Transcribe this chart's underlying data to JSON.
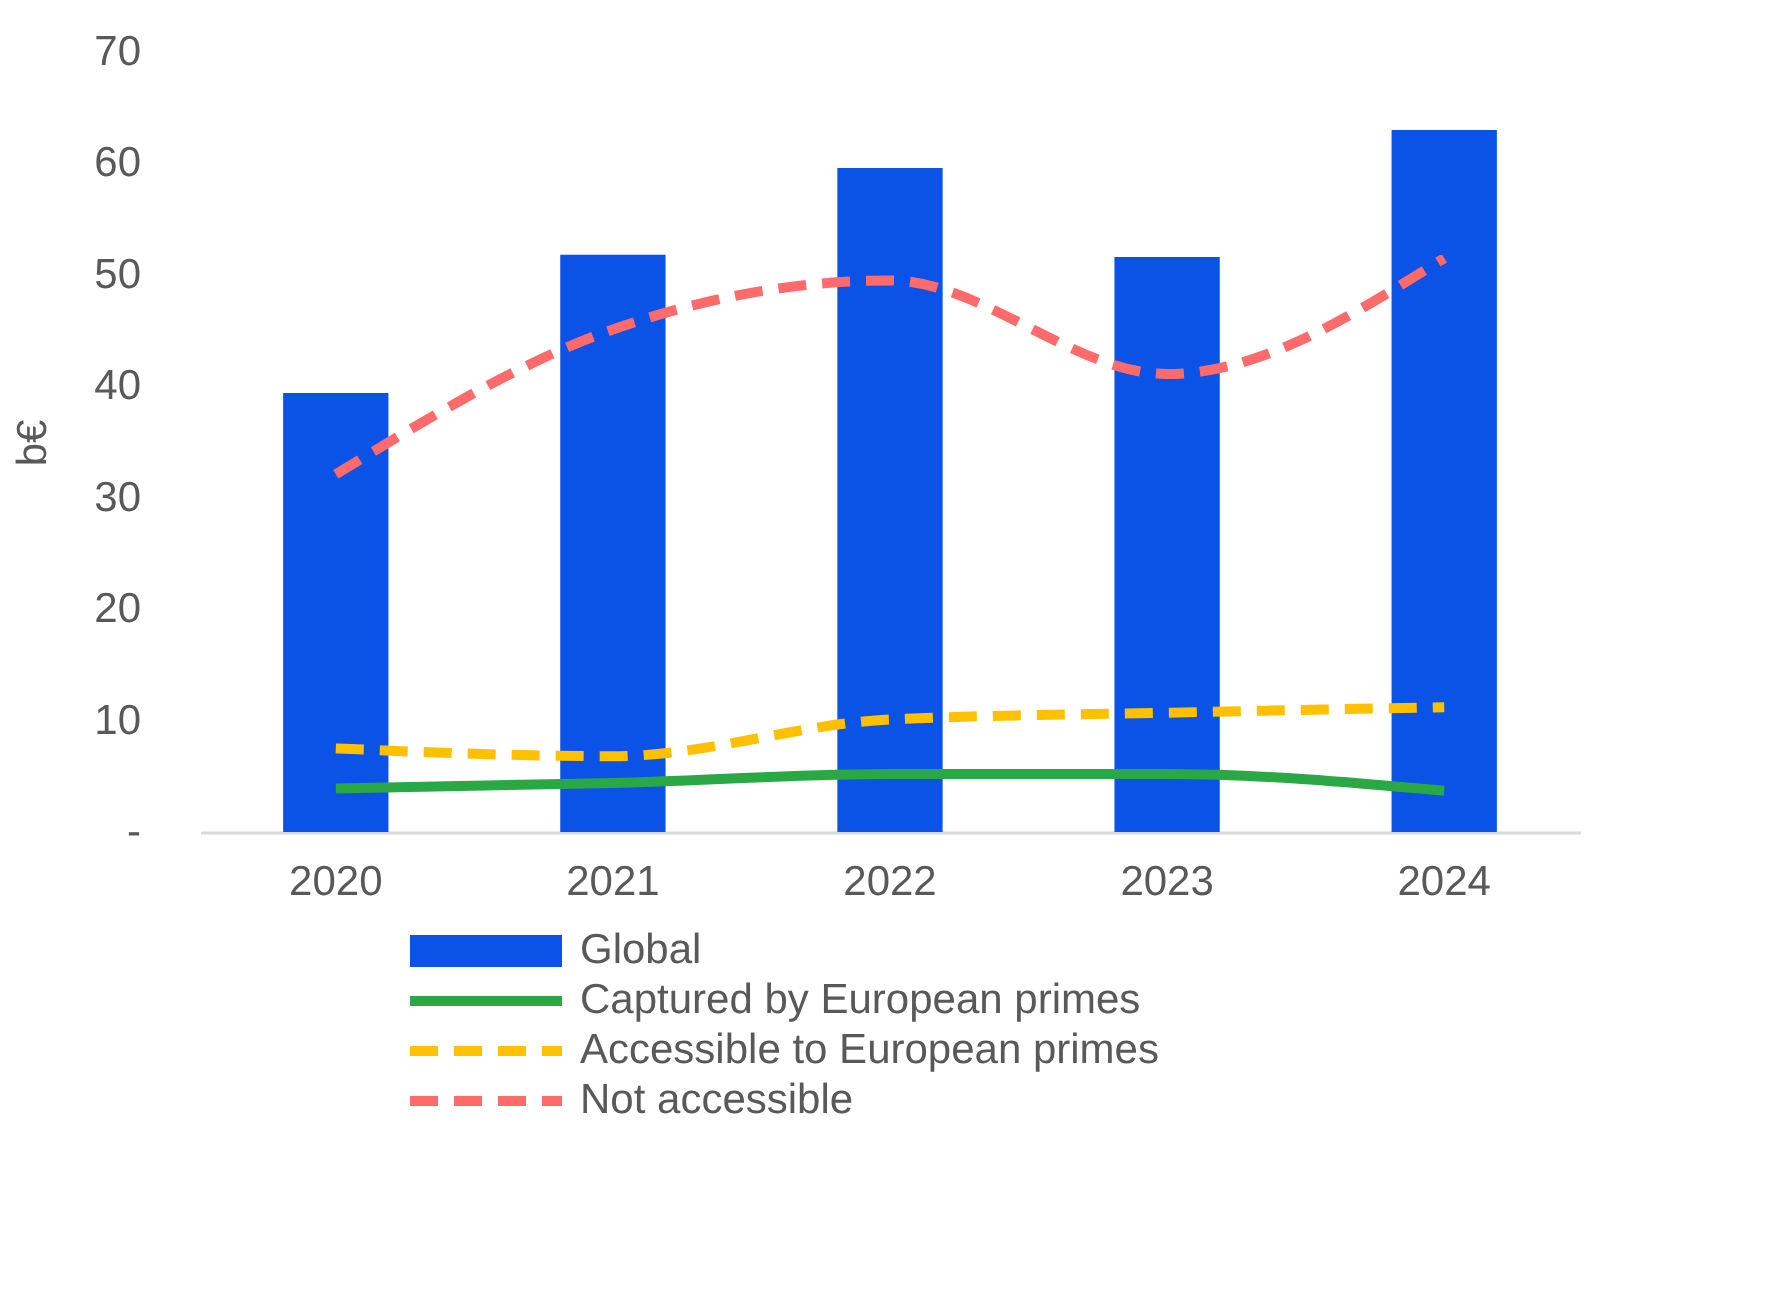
{
  "chart_data": {
    "type": "bar",
    "ylabel": "b€",
    "categories": [
      "2020",
      "2021",
      "2022",
      "2023",
      "2024"
    ],
    "series": [
      {
        "name": "Global",
        "color": "#0b52e6",
        "values": [
          39.4,
          51.8,
          59.6,
          51.6,
          63.0
        ]
      },
      {
        "name": "Captured by European primes",
        "type": "line",
        "line_style": "solid",
        "color": "#2aa843",
        "values": [
          3.9,
          4.4,
          5.2,
          5.2,
          3.7
        ]
      },
      {
        "name": "Accessible to European primes",
        "type": "line",
        "line_style": "dashed",
        "color": "#ffc000",
        "values": [
          7.5,
          6.8,
          10.1,
          10.7,
          11.2
        ]
      },
      {
        "name": "Not accessible",
        "type": "line",
        "line_style": "dashed",
        "color": "#ff6b6b",
        "values": [
          32.1,
          45.1,
          49.5,
          41.1,
          51.5
        ]
      }
    ],
    "ylim": [
      0,
      70
    ],
    "yticks": [
      {
        "value": 0,
        "label": "-"
      },
      10,
      20,
      30,
      40,
      50,
      60,
      70
    ],
    "grid": false,
    "legend": "bottom",
    "marker": "none"
  }
}
